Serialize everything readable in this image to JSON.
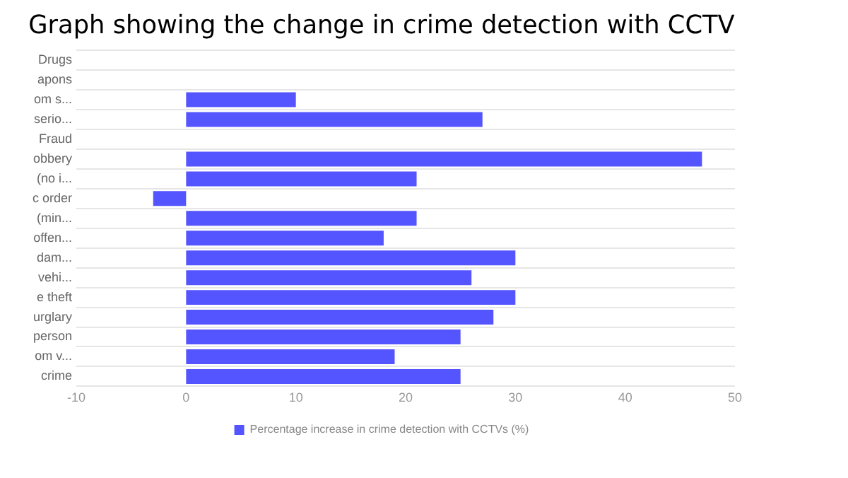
{
  "chart_data": {
    "type": "bar",
    "orientation": "horizontal",
    "title": "Graph showing the change in crime detection with CCTV",
    "categories": [
      "Drugs",
      "apons",
      "om s...",
      "serio...",
      "Fraud",
      "obbery",
      "(no i...",
      "c order",
      "(min...",
      "offen...",
      "dam...",
      "vehi...",
      "e theft",
      "urglary",
      "person",
      "om v...",
      "crime"
    ],
    "series": [
      {
        "name": "Percentage increase in crime detection with CCTVs (%)",
        "color": "#5555ff",
        "values": [
          0,
          0,
          10,
          27,
          0,
          47,
          21,
          -3,
          21,
          18,
          30,
          26,
          30,
          28,
          25,
          19,
          25
        ]
      }
    ],
    "xlim": [
      -10,
      50
    ],
    "xticks": [
      -10,
      0,
      10,
      20,
      30,
      40,
      50
    ],
    "grid": "y",
    "legend": "bottom"
  }
}
